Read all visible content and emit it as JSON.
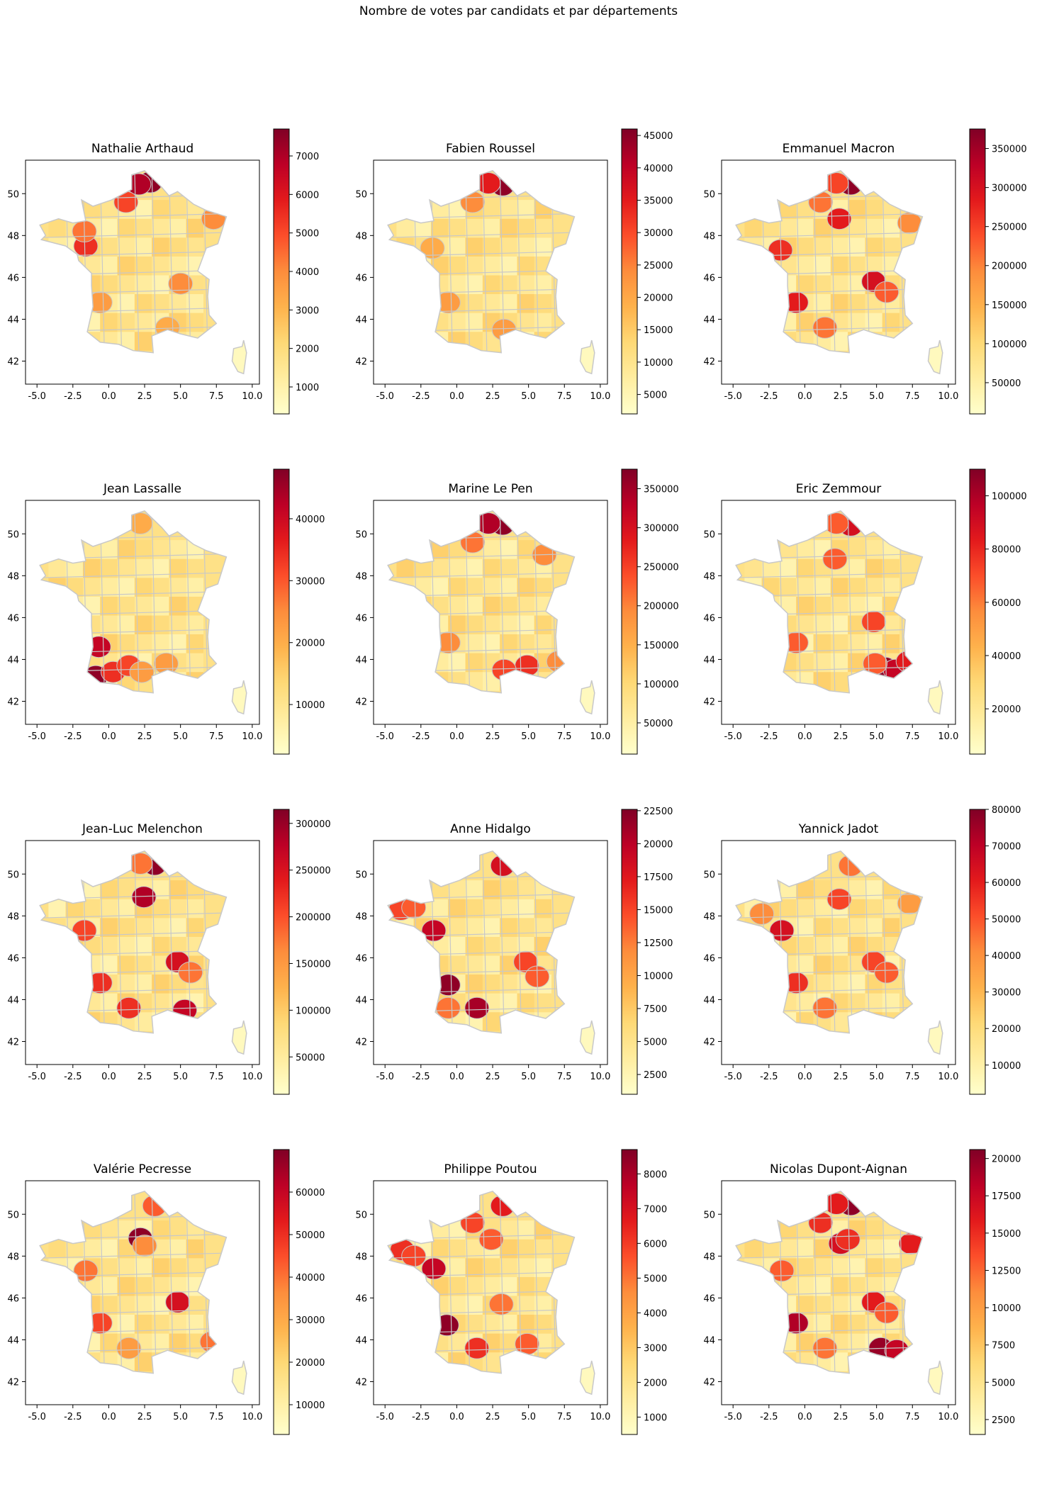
{
  "suptitle": "Nombre de votes par candidats et par départements",
  "shared_axes": {
    "xticks": [
      "-5.0",
      "-2.5",
      "0.0",
      "2.5",
      "5.0",
      "7.5",
      "10.0"
    ],
    "yticks": [
      "42",
      "44",
      "46",
      "48",
      "50"
    ],
    "xlim": [
      -5.8,
      10.5
    ],
    "ylim": [
      40.9,
      51.6
    ],
    "colormap": [
      "#ffffcc",
      "#ffeda0",
      "#fed976",
      "#feb24c",
      "#fd8d3c",
      "#fc4e2a",
      "#e31a1c",
      "#bd0026",
      "#800026"
    ],
    "border_color": "#c8c8c8"
  },
  "chart_data": [
    {
      "type": "map",
      "title": "Nathalie Arthaud",
      "colorbar": {
        "min": 300,
        "max": 7700,
        "ticks": [
          "1000",
          "2000",
          "3000",
          "4000",
          "5000",
          "6000",
          "7000"
        ]
      },
      "hotspots": [
        {
          "lon": 2.9,
          "lat": 50.55,
          "level": 0.97
        },
        {
          "lon": 2.1,
          "lat": 50.45,
          "level": 0.9
        },
        {
          "lon": 1.2,
          "lat": 49.6,
          "level": 0.65
        },
        {
          "lon": -1.6,
          "lat": 47.5,
          "level": 0.7
        },
        {
          "lon": -1.7,
          "lat": 48.2,
          "level": 0.55
        },
        {
          "lon": 5.0,
          "lat": 45.7,
          "level": 0.5
        },
        {
          "lon": 7.3,
          "lat": 48.8,
          "level": 0.5
        },
        {
          "lon": -0.6,
          "lat": 44.8,
          "level": 0.45
        },
        {
          "lon": 4.1,
          "lat": 43.6,
          "level": 0.4
        }
      ]
    },
    {
      "type": "map",
      "title": "Fabien Roussel",
      "colorbar": {
        "min": 2000,
        "max": 46000,
        "ticks": [
          "5000",
          "10000",
          "15000",
          "20000",
          "25000",
          "30000",
          "35000",
          "40000",
          "45000"
        ]
      },
      "hotspots": [
        {
          "lon": 3.2,
          "lat": 50.4,
          "level": 0.97
        },
        {
          "lon": 2.2,
          "lat": 50.5,
          "level": 0.75
        },
        {
          "lon": 1.1,
          "lat": 49.6,
          "level": 0.5
        },
        {
          "lon": -0.6,
          "lat": 44.8,
          "level": 0.45
        },
        {
          "lon": 3.3,
          "lat": 43.5,
          "level": 0.45
        },
        {
          "lon": -1.7,
          "lat": 47.4,
          "level": 0.4
        }
      ]
    },
    {
      "type": "map",
      "title": "Emmanuel Macron",
      "colorbar": {
        "min": 10000,
        "max": 375000,
        "ticks": [
          "50000",
          "100000",
          "150000",
          "200000",
          "250000",
          "300000",
          "350000"
        ]
      },
      "hotspots": [
        {
          "lon": 3.2,
          "lat": 50.45,
          "level": 0.97
        },
        {
          "lon": -0.6,
          "lat": 44.8,
          "level": 0.75
        },
        {
          "lon": 4.8,
          "lat": 45.8,
          "level": 0.8
        },
        {
          "lon": 2.4,
          "lat": 48.8,
          "level": 0.75
        },
        {
          "lon": -1.7,
          "lat": 47.3,
          "level": 0.7
        },
        {
          "lon": 5.7,
          "lat": 45.3,
          "level": 0.6
        },
        {
          "lon": 1.1,
          "lat": 49.6,
          "level": 0.55
        },
        {
          "lon": 2.2,
          "lat": 50.5,
          "level": 0.65
        },
        {
          "lon": 1.4,
          "lat": 43.6,
          "level": 0.55
        },
        {
          "lon": 7.3,
          "lat": 48.6,
          "level": 0.5
        }
      ]
    },
    {
      "type": "map",
      "title": "Jean Lassalle",
      "colorbar": {
        "min": 2000,
        "max": 48000,
        "ticks": [
          "10000",
          "20000",
          "30000",
          "40000"
        ]
      },
      "hotspots": [
        {
          "lon": -0.9,
          "lat": 43.2,
          "level": 0.97
        },
        {
          "lon": -0.7,
          "lat": 44.6,
          "level": 0.85
        },
        {
          "lon": 0.3,
          "lat": 43.4,
          "level": 0.7
        },
        {
          "lon": 1.4,
          "lat": 43.7,
          "level": 0.65
        },
        {
          "lon": 2.3,
          "lat": 43.4,
          "level": 0.45
        },
        {
          "lon": 4.0,
          "lat": 43.8,
          "level": 0.45
        },
        {
          "lon": 2.2,
          "lat": 50.5,
          "level": 0.4
        }
      ]
    },
    {
      "type": "map",
      "title": "Marine Le Pen",
      "colorbar": {
        "min": 10000,
        "max": 375000,
        "ticks": [
          "50000",
          "100000",
          "150000",
          "200000",
          "250000",
          "300000",
          "350000"
        ]
      },
      "hotspots": [
        {
          "lon": 3.2,
          "lat": 50.45,
          "level": 0.97
        },
        {
          "lon": 2.2,
          "lat": 50.5,
          "level": 0.9
        },
        {
          "lon": 4.9,
          "lat": 43.7,
          "level": 0.7
        },
        {
          "lon": 3.3,
          "lat": 43.5,
          "level": 0.65
        },
        {
          "lon": 7.1,
          "lat": 43.9,
          "level": 0.5
        },
        {
          "lon": 1.1,
          "lat": 49.6,
          "level": 0.55
        },
        {
          "lon": 6.1,
          "lat": 49.0,
          "level": 0.5
        },
        {
          "lon": -0.6,
          "lat": 44.8,
          "level": 0.5
        }
      ]
    },
    {
      "type": "map",
      "title": "Eric Zemmour",
      "colorbar": {
        "min": 3000,
        "max": 110000,
        "ticks": [
          "20000",
          "40000",
          "60000",
          "80000",
          "100000"
        ]
      },
      "hotspots": [
        {
          "lon": 5.6,
          "lat": 43.6,
          "level": 0.97
        },
        {
          "lon": 6.3,
          "lat": 43.5,
          "level": 0.85
        },
        {
          "lon": 7.2,
          "lat": 43.9,
          "level": 0.75
        },
        {
          "lon": 3.2,
          "lat": 50.4,
          "level": 0.8
        },
        {
          "lon": 2.2,
          "lat": 50.5,
          "level": 0.6
        },
        {
          "lon": 2.1,
          "lat": 48.8,
          "level": 0.6
        },
        {
          "lon": 4.8,
          "lat": 45.8,
          "level": 0.65
        },
        {
          "lon": -0.6,
          "lat": 44.8,
          "level": 0.6
        },
        {
          "lon": 4.9,
          "lat": 43.8,
          "level": 0.6
        }
      ]
    },
    {
      "type": "map",
      "title": "Jean-Luc Melenchon",
      "colorbar": {
        "min": 10000,
        "max": 315000,
        "ticks": [
          "50000",
          "100000",
          "150000",
          "200000",
          "250000",
          "300000"
        ]
      },
      "hotspots": [
        {
          "lon": 3.2,
          "lat": 50.45,
          "level": 0.97
        },
        {
          "lon": 2.45,
          "lat": 48.9,
          "level": 0.9
        },
        {
          "lon": 5.3,
          "lat": 43.5,
          "level": 0.85
        },
        {
          "lon": 4.8,
          "lat": 45.8,
          "level": 0.8
        },
        {
          "lon": -0.6,
          "lat": 44.8,
          "level": 0.7
        },
        {
          "lon": 1.4,
          "lat": 43.6,
          "level": 0.7
        },
        {
          "lon": -1.7,
          "lat": 47.3,
          "level": 0.65
        },
        {
          "lon": 2.2,
          "lat": 50.5,
          "level": 0.55
        },
        {
          "lon": 5.7,
          "lat": 45.3,
          "level": 0.55
        }
      ]
    },
    {
      "type": "map",
      "title": "Anne Hidalgo",
      "colorbar": {
        "min": 1000,
        "max": 22600,
        "ticks": [
          "2500",
          "5000",
          "7500",
          "10000",
          "12500",
          "15000",
          "17500",
          "20000",
          "22500"
        ]
      },
      "hotspots": [
        {
          "lon": -0.6,
          "lat": 44.7,
          "level": 0.97
        },
        {
          "lon": 1.4,
          "lat": 43.6,
          "level": 0.92
        },
        {
          "lon": -1.6,
          "lat": 47.3,
          "level": 0.85
        },
        {
          "lon": 3.2,
          "lat": 50.4,
          "level": 0.8
        },
        {
          "lon": -3.9,
          "lat": 48.3,
          "level": 0.65
        },
        {
          "lon": -3.0,
          "lat": 48.4,
          "level": 0.6
        },
        {
          "lon": 4.8,
          "lat": 45.8,
          "level": 0.65
        },
        {
          "lon": 5.6,
          "lat": 45.1,
          "level": 0.6
        },
        {
          "lon": -0.6,
          "lat": 43.6,
          "level": 0.55
        }
      ]
    },
    {
      "type": "map",
      "title": "Yannick Jadot",
      "colorbar": {
        "min": 2000,
        "max": 80000,
        "ticks": [
          "10000",
          "20000",
          "30000",
          "40000",
          "50000",
          "60000",
          "70000",
          "80000"
        ]
      },
      "hotspots": [
        {
          "lon": -1.6,
          "lat": 47.3,
          "level": 0.8
        },
        {
          "lon": -0.6,
          "lat": 44.8,
          "level": 0.7
        },
        {
          "lon": 2.4,
          "lat": 48.8,
          "level": 0.65
        },
        {
          "lon": 4.8,
          "lat": 45.8,
          "level": 0.65
        },
        {
          "lon": 5.7,
          "lat": 45.3,
          "level": 0.6
        },
        {
          "lon": 3.2,
          "lat": 50.4,
          "level": 0.55
        },
        {
          "lon": 1.4,
          "lat": 43.6,
          "level": 0.55
        },
        {
          "lon": -3.0,
          "lat": 48.1,
          "level": 0.5
        },
        {
          "lon": 7.3,
          "lat": 48.6,
          "level": 0.45
        }
      ]
    },
    {
      "type": "map",
      "title": "Valérie Pecresse",
      "colorbar": {
        "min": 3000,
        "max": 70000,
        "ticks": [
          "10000",
          "20000",
          "30000",
          "40000",
          "50000",
          "60000"
        ]
      },
      "hotspots": [
        {
          "lon": 2.2,
          "lat": 48.85,
          "level": 0.97
        },
        {
          "lon": 4.8,
          "lat": 45.8,
          "level": 0.8
        },
        {
          "lon": -0.6,
          "lat": 44.8,
          "level": 0.65
        },
        {
          "lon": 3.2,
          "lat": 50.4,
          "level": 0.6
        },
        {
          "lon": -1.6,
          "lat": 47.3,
          "level": 0.55
        },
        {
          "lon": 7.2,
          "lat": 43.9,
          "level": 0.55
        },
        {
          "lon": 2.5,
          "lat": 48.5,
          "level": 0.5
        },
        {
          "lon": 1.4,
          "lat": 43.6,
          "level": 0.45
        }
      ]
    },
    {
      "type": "map",
      "title": "Philippe Poutou",
      "colorbar": {
        "min": 500,
        "max": 8700,
        "ticks": [
          "1000",
          "2000",
          "3000",
          "4000",
          "5000",
          "6000",
          "7000",
          "8000"
        ]
      },
      "hotspots": [
        {
          "lon": -0.7,
          "lat": 44.7,
          "level": 0.97
        },
        {
          "lon": -1.6,
          "lat": 47.4,
          "level": 0.85
        },
        {
          "lon": -3.8,
          "lat": 48.3,
          "level": 0.7
        },
        {
          "lon": -3.0,
          "lat": 48.0,
          "level": 0.65
        },
        {
          "lon": 3.2,
          "lat": 50.4,
          "level": 0.75
        },
        {
          "lon": 1.1,
          "lat": 49.6,
          "level": 0.65
        },
        {
          "lon": 1.4,
          "lat": 43.6,
          "level": 0.7
        },
        {
          "lon": 2.4,
          "lat": 48.8,
          "level": 0.6
        },
        {
          "lon": 4.9,
          "lat": 43.8,
          "level": 0.6
        },
        {
          "lon": 3.1,
          "lat": 45.7,
          "level": 0.55
        }
      ]
    },
    {
      "type": "map",
      "title": "Nicolas Dupont-Aignan",
      "colorbar": {
        "min": 1500,
        "max": 20600,
        "ticks": [
          "2500",
          "5000",
          "7500",
          "10000",
          "12500",
          "15000",
          "17500",
          "20000"
        ]
      },
      "hotspots": [
        {
          "lon": 3.2,
          "lat": 50.45,
          "level": 0.97
        },
        {
          "lon": 5.3,
          "lat": 43.6,
          "level": 0.95
        },
        {
          "lon": 6.4,
          "lat": 43.5,
          "level": 0.85
        },
        {
          "lon": -0.6,
          "lat": 44.8,
          "level": 0.9
        },
        {
          "lon": 2.5,
          "lat": 48.6,
          "level": 0.8
        },
        {
          "lon": 2.2,
          "lat": 50.5,
          "level": 0.75
        },
        {
          "lon": 1.1,
          "lat": 49.6,
          "level": 0.7
        },
        {
          "lon": 4.8,
          "lat": 45.8,
          "level": 0.75
        },
        {
          "lon": 7.4,
          "lat": 48.6,
          "level": 0.75
        },
        {
          "lon": 3.0,
          "lat": 48.8,
          "level": 0.7
        },
        {
          "lon": 5.7,
          "lat": 45.3,
          "level": 0.6
        },
        {
          "lon": -1.6,
          "lat": 47.3,
          "level": 0.6
        },
        {
          "lon": 1.4,
          "lat": 43.6,
          "level": 0.55
        }
      ]
    }
  ]
}
